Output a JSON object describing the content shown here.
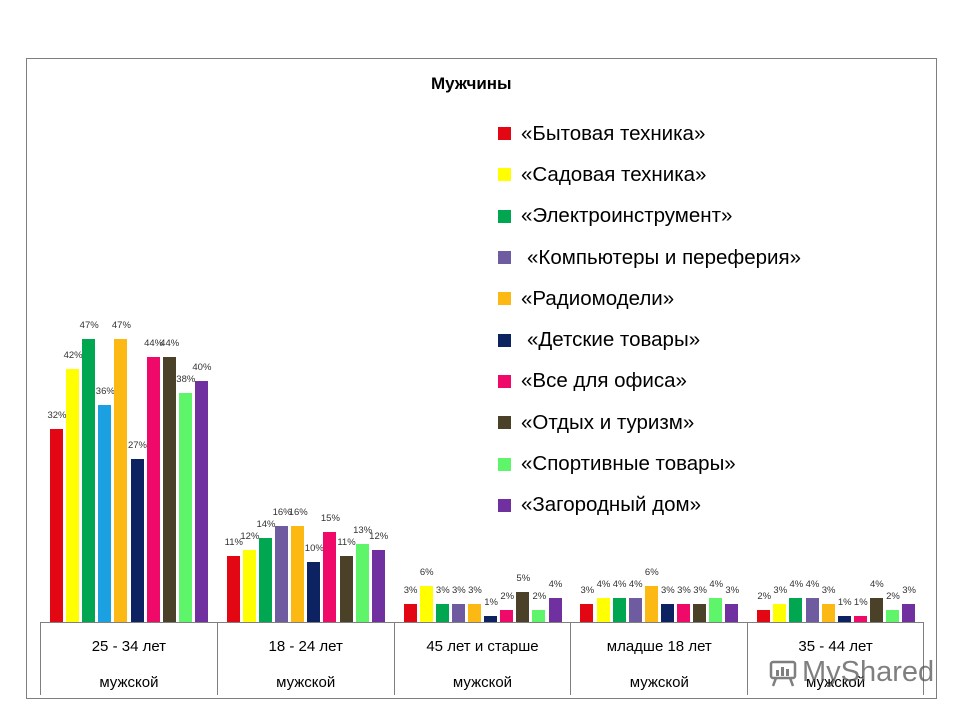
{
  "chart_data": {
    "type": "bar",
    "title": "Мужчины",
    "xlabel": "",
    "ylabel": "",
    "ylim": [
      0,
      50
    ],
    "grid": false,
    "legend_position": "right-top",
    "categories": [
      "25 - 34 лет",
      "18 - 24 лет",
      "45 лет и старше",
      "младше 18 лет",
      "35 - 44 лет"
    ],
    "subcategories": [
      "мужской",
      "мужской",
      "мужской",
      "мужской",
      "мужской"
    ],
    "series": [
      {
        "name": "«Бытовая техника»",
        "color": "#e30613",
        "values": [
          32,
          11,
          3,
          3,
          2
        ]
      },
      {
        "name": "«Садовая техника»",
        "color": "#ffff00",
        "values": [
          42,
          12,
          6,
          4,
          3
        ]
      },
      {
        "name": "«Электроинструмент»",
        "color": "#00a650",
        "values": [
          47,
          14,
          3,
          4,
          4
        ]
      },
      {
        "name": "«Компьютеры и переферия»",
        "color": "#6f5ba0",
        "values": [
          36,
          16,
          3,
          4,
          4
        ]
      },
      {
        "name": "«Радиомодели»",
        "color": "#fdb913",
        "values": [
          47,
          16,
          3,
          6,
          3
        ]
      },
      {
        "name": "«Детские товары»",
        "color": "#0d2260",
        "values": [
          27,
          10,
          1,
          3,
          1
        ]
      },
      {
        "name": "«Все для офиса»",
        "color": "#ef0a6a",
        "values": [
          44,
          15,
          2,
          3,
          1
        ]
      },
      {
        "name": "«Отдых и туризм»",
        "color": "#4a4128",
        "values": [
          44,
          11,
          5,
          3,
          4
        ]
      },
      {
        "name": "«Спортивные товары»",
        "color": "#5ef56a",
        "values": [
          38,
          13,
          2,
          4,
          2
        ]
      },
      {
        "name": "«Загородный дом»",
        "color": "#7030a0",
        "values": [
          40,
          12,
          4,
          3,
          3
        ]
      }
    ],
    "notes": "In the first group (25 - 34 лет) the 4th bar (36%) is drawn in light blue #1ba1e2 instead of the legend purple."
  },
  "first_group_override_color": "#1ba1e2",
  "watermark": {
    "text": "MyShared"
  }
}
